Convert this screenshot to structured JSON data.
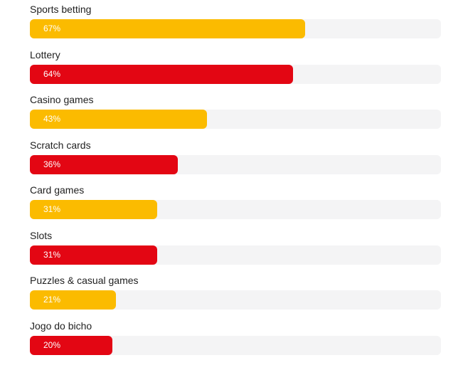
{
  "colors": {
    "track": "#f4f4f5",
    "yellow": "#fbbb00",
    "red": "#e30613"
  },
  "chart_data": {
    "type": "bar",
    "orientation": "horizontal",
    "categories": [
      "Sports betting",
      "Lottery",
      "Casino games",
      "Scratch cards",
      "Card games",
      "Slots",
      "Puzzles & casual games",
      "Jogo do bicho"
    ],
    "values": [
      67,
      64,
      43,
      36,
      31,
      31,
      21,
      20
    ],
    "value_labels": [
      "67%",
      "64%",
      "43%",
      "36%",
      "31%",
      "31%",
      "21%",
      "20%"
    ],
    "bar_colors": [
      "#fbbb00",
      "#e30613",
      "#fbbb00",
      "#e30613",
      "#fbbb00",
      "#e30613",
      "#fbbb00",
      "#e30613"
    ],
    "xlim": [
      0,
      100
    ],
    "unit": "%",
    "grid": false
  }
}
